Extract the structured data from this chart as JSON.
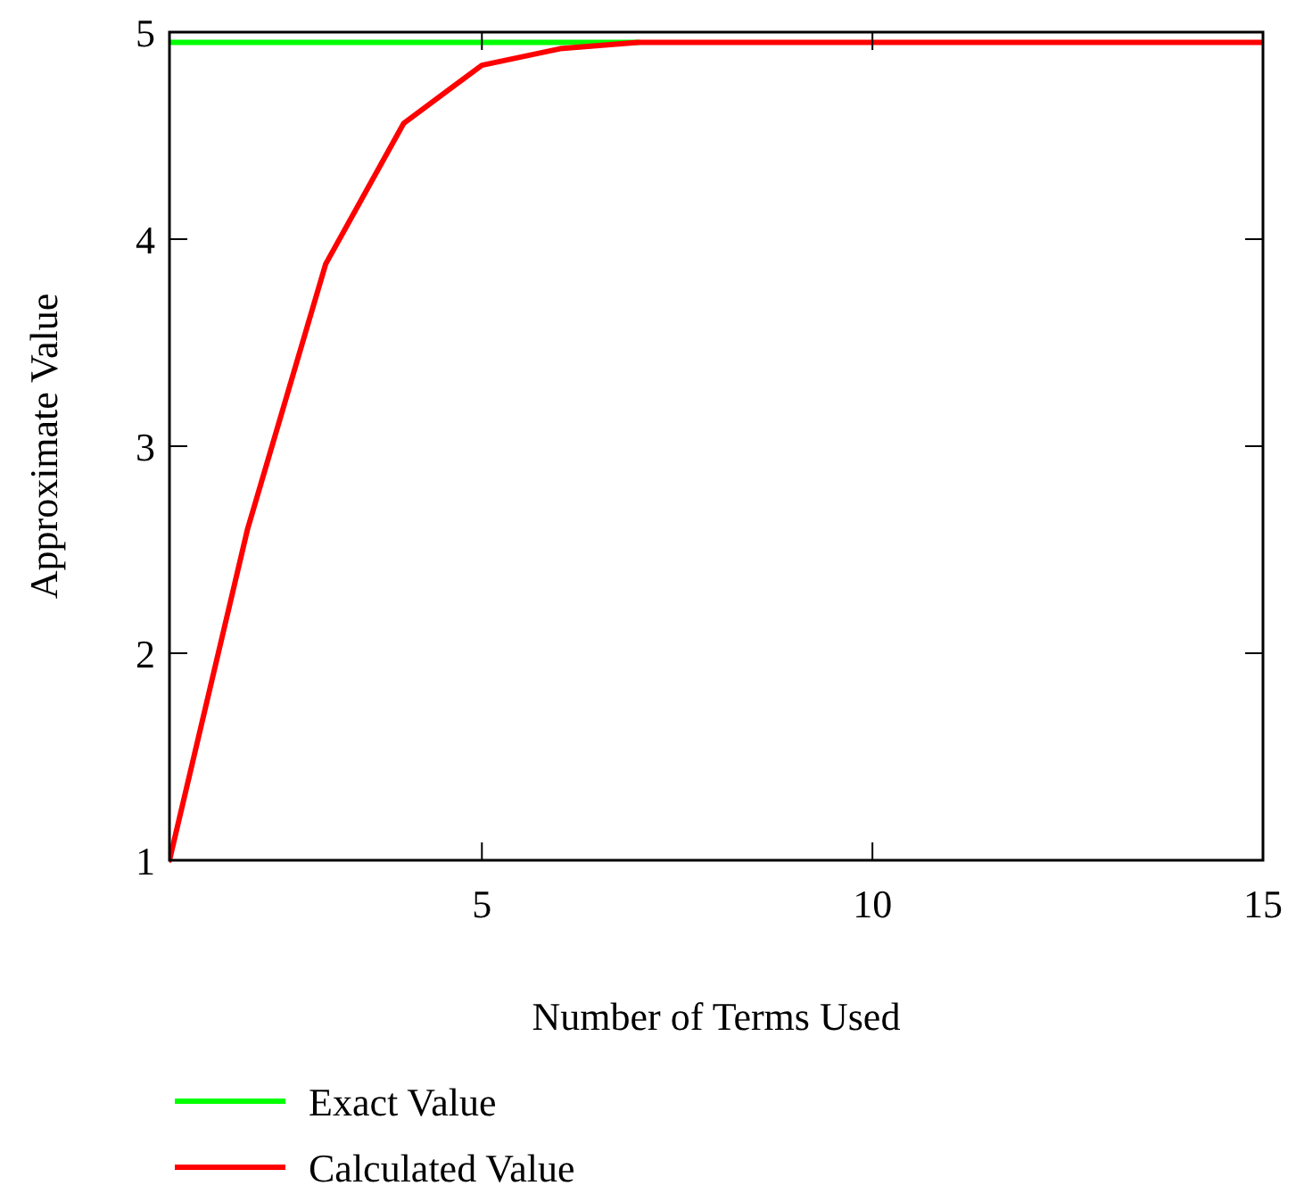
{
  "chart_data": {
    "type": "line",
    "xlabel": "Number of Terms Used",
    "ylabel": "Approximate Value",
    "x": [
      1,
      2,
      3,
      4,
      5,
      6,
      7,
      8,
      9,
      10,
      11,
      12,
      13,
      14,
      15
    ],
    "xlim": [
      1,
      15
    ],
    "xticks": [
      {
        "value": 1,
        "label": null
      },
      5,
      10,
      15
    ],
    "ylim": [
      1,
      5
    ],
    "yticks": [
      1,
      2,
      3,
      4,
      5
    ],
    "legend": "bottom",
    "grid": false,
    "marker": "none",
    "line_style": "solid",
    "series": [
      {
        "name": "Exact Value",
        "color": "#00ff00",
        "values": [
          4.95,
          4.95,
          4.95,
          4.95,
          4.95,
          4.95,
          4.95,
          null,
          null,
          null,
          null,
          null,
          null,
          null,
          null
        ]
      },
      {
        "name": "Calculated Value",
        "color": "#ff0000",
        "values": [
          1,
          2.6,
          3.88,
          4.56,
          4.84,
          4.92,
          4.95,
          4.95,
          4.95,
          4.95,
          4.95,
          4.95,
          4.95,
          4.95,
          4.95
        ]
      }
    ]
  }
}
